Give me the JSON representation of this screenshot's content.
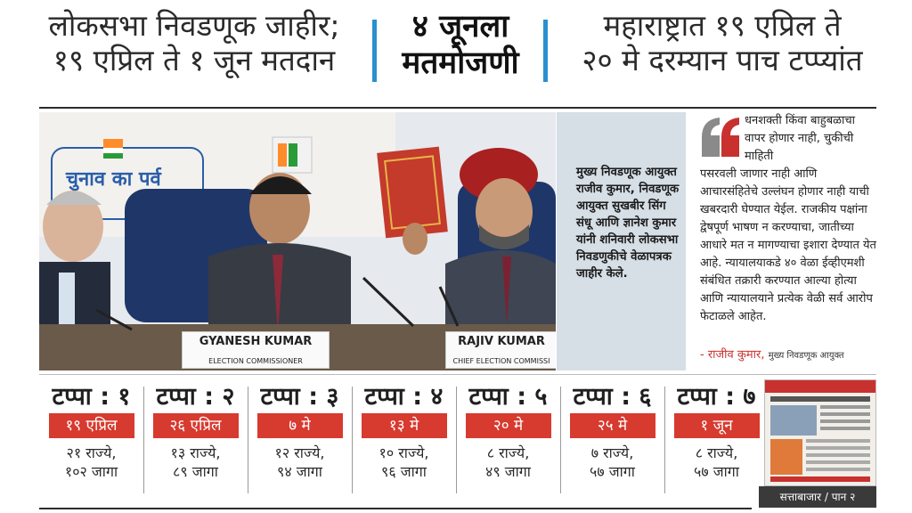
{
  "headlines": {
    "left": {
      "line1": "लोकसभा निवडणूक जाहीर;",
      "line2": "१९ एप्रिल ते १ जून मतदान"
    },
    "center": {
      "line1": "४ जूनला",
      "line2": "मतमोजणी"
    },
    "right": {
      "line1": "महाराष्ट्रात १९ एप्रिल ते",
      "line2": "२० मे दरम्यान पाच टप्प्यांत"
    }
  },
  "photo": {
    "nameplate_left": {
      "name": "GYANESH KUMAR",
      "title": "ELECTION COMMISSIONER"
    },
    "nameplate_right": {
      "name": "RAJIV KUMAR",
      "title": "CHIEF ELECTION COMMISSI"
    },
    "backdrop_text": "चुनाव का पर्व"
  },
  "caption": "मुख्य निवडणूक आयुक्त राजीव कुमार, निवडणूक आयुक्त सुखबीर सिंग संधू आणि ज्ञानेश कुमार यांनी शनिवारी लोकसभा निवडणुकीचे वेळापत्रक जाहीर केले.",
  "quote": {
    "first": "धनशक्ती किंवा बाहुबळाचा वापर होणार नाही, चुकीची माहिती",
    "rest": "पसरवली जाणार नाही आणि आचारसंहितेचे उल्लंघन होणार नाही याची खबरदारी घेण्यात येईल. राजकीय पक्षांना द्वेषपूर्ण भाषण न करण्याचा, जातीच्या आधारे मत न मागण्याचा इशारा देण्यात येत आहे. न्यायालयाकडे ४० वेळा ईव्हीएमशी संबंधित तक्रारी करण्यात आल्या होत्या आणि न्यायालयाने प्रत्येक वेळी सर्व आरोप फेटाळले आहेत.",
    "author": "- राजीव कुमार,",
    "author_title": "मुख्य निवडणूक आयुक्त"
  },
  "phases": [
    {
      "label": "टप्पा : १",
      "date": "१९ एप्रिल",
      "states": "२१ राज्ये,",
      "seats": "१०२ जागा"
    },
    {
      "label": "टप्पा : २",
      "date": "२६ एप्रिल",
      "states": "१३ राज्ये,",
      "seats": "८९ जागा"
    },
    {
      "label": "टप्पा : ३",
      "date": "७ मे",
      "states": "१२ राज्ये,",
      "seats": "९४ जागा"
    },
    {
      "label": "टप्पा : ४",
      "date": "१३ मे",
      "states": "१० राज्ये,",
      "seats": "९६ जागा"
    },
    {
      "label": "टप्पा : ५",
      "date": "२० मे",
      "states": "८ राज्ये,",
      "seats": "४९ जागा"
    },
    {
      "label": "टप्पा : ६",
      "date": "२५ मे",
      "states": "७ राज्ये,",
      "seats": "५७ जागा"
    },
    {
      "label": "टप्पा : ७",
      "date": "१ जून",
      "states": "८ राज्ये,",
      "seats": "५७ जागा"
    }
  ],
  "footer": {
    "page_ref": "सत्ताबाजार / पान २"
  },
  "colors": {
    "accent_blue": "#2a8fd0",
    "date_red": "#d73a2f",
    "quote_red": "#c8312e",
    "caption_bg": "#d6dee6"
  }
}
